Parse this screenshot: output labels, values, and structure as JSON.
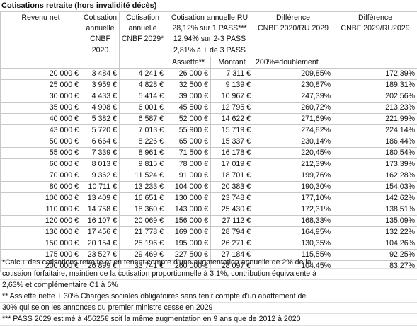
{
  "title": "Cotisations retraite (hors invalidité décès)",
  "headers": {
    "revenu": "Revenu net",
    "cnbf2020_l1": "Cotisation",
    "cnbf2020_l2": "annuelle",
    "cnbf2020_l3": "CNBF 2020",
    "cnbf2029_l1": "Cotisation",
    "cnbf2029_l2": "annuelle",
    "cnbf2029_l3": "CNBF 2029*",
    "ru_l1": "Cotisation annuelle RU",
    "ru_l2": "28,12% sur 1 PASS***",
    "ru_l3": "12,94% sur 2-3 PASS",
    "ru_l4": "2,81% à + de 3 PASS",
    "diff2020": "Différence",
    "diff2020_l2": "CNBF 2020/RU 2029",
    "diff2029": "Différence",
    "diff2029_l2": "CNBF 2029/RU2029",
    "assiette": "Assiette**",
    "montant": "Montant",
    "doublement": "200%=doublement"
  },
  "rows": [
    [
      "20 000 €",
      "3 484 €",
      "4 241 €",
      "26 000 €",
      "7 311 €",
      "209,85%",
      "172,39%"
    ],
    [
      "25 000 €",
      "3 959 €",
      "4 828 €",
      "32 500 €",
      "9 139 €",
      "230,87%",
      "189,31%"
    ],
    [
      "30 000 €",
      "4 433 €",
      "5 414 €",
      "39 000 €",
      "10 967 €",
      "247,39%",
      "202,56%"
    ],
    [
      "35 000 €",
      "4 908 €",
      "6 001 €",
      "45 500 €",
      "12 795 €",
      "260,72%",
      "213,23%"
    ],
    [
      "40 000 €",
      "5 382 €",
      "6 587 €",
      "52 000 €",
      "14 622 €",
      "271,69%",
      "221,99%"
    ],
    [
      "43 000 €",
      "5 720 €",
      "7 013 €",
      "55 900 €",
      "15 719 €",
      "274,82%",
      "224,14%"
    ],
    [
      "50 000 €",
      "6 664 €",
      "8 226 €",
      "65 000 €",
      "15 337 €",
      "230,14%",
      "186,44%"
    ],
    [
      "55 000 €",
      "7 339 €",
      "8 961 €",
      "71 500 €",
      "16 178 €",
      "220,45%",
      "180,54%"
    ],
    [
      "60 000 €",
      "8 013 €",
      "9 815 €",
      "78 000 €",
      "17 019 €",
      "212,39%",
      "173,39%"
    ],
    [
      "70 000 €",
      "9 362 €",
      "11 524 €",
      "91 000 €",
      "18 701 €",
      "199,76%",
      "162,28%"
    ],
    [
      "80 000 €",
      "10 711 €",
      "13 233 €",
      "104 000 €",
      "20 383 €",
      "190,30%",
      "154,03%"
    ],
    [
      "100 000 €",
      "13 409 €",
      "16 651 €",
      "130 000 €",
      "23 748 €",
      "177,10%",
      "142,62%"
    ],
    [
      "110 000 €",
      "14 758 €",
      "18 360 €",
      "143 000 €",
      "25 430 €",
      "172,31%",
      "138,51%"
    ],
    [
      "120 000 €",
      "16 107 €",
      "20 069 €",
      "156 000 €",
      "27 112 €",
      "168,33%",
      "135,09%"
    ],
    [
      "130 000 €",
      "17 456 €",
      "21 778 €",
      "169 000 €",
      "28 794 €",
      "164,95%",
      "132,22%"
    ],
    [
      "150 000 €",
      "20 154 €",
      "25 196 €",
      "195 000 €",
      "26 271 €",
      "130,35%",
      "104,26%"
    ],
    [
      "175 000 €",
      "23 527 €",
      "29 469 €",
      "227 500 €",
      "27 184 €",
      "115,55%",
      "92,25%"
    ],
    [
      "200 000 €",
      "26 899 €",
      "33 741 €",
      "260 000 €",
      "28 097 €",
      "104,45%",
      "83,27%"
    ]
  ],
  "notes": [
    "*Calcul des cotisations retraite et en tenant compte d'une augmentation annuelle de 2% de la",
    "cotisaion forfaitaire, maintien de la cotisation proportionnelle à 3,1%, contribution équivalente à",
    "2,63% et complémentaire C1 à 6%",
    "** Assiette nette + 30% Charges sociales obligatoires sans tenir compte d'un abattement de",
    "30% qui selon les annonces du premier ministre cesse en 2029",
    "*** PASS 2029 estimé à 45625€ soit la même augmentation en 9 ans que de 2012 à 2020"
  ]
}
